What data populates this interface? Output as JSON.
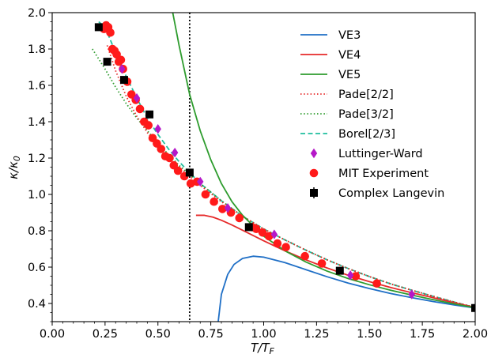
{
  "chart_data": {
    "type": "line",
    "xlabel": "T/T_F",
    "ylabel": "κ/κ_0",
    "xlim": [
      0.0,
      2.0
    ],
    "ylim": [
      0.3,
      2.0
    ],
    "xticks": [
      0.0,
      0.25,
      0.5,
      0.75,
      1.0,
      1.25,
      1.5,
      1.75,
      2.0
    ],
    "xtick_labels": [
      "0.00",
      "0.25",
      "0.50",
      "0.75",
      "1.00",
      "1.25",
      "1.50",
      "1.75",
      "2.00"
    ],
    "yticks": [
      0.4,
      0.6,
      0.8,
      1.0,
      1.2,
      1.4,
      1.6,
      1.8,
      2.0
    ],
    "ytick_labels": [
      "0.4",
      "0.6",
      "0.8",
      "1.0",
      "1.2",
      "1.4",
      "1.6",
      "1.8",
      "2.0"
    ],
    "grid": false,
    "legend_position": "top-right",
    "vline_x": 0.65,
    "series": [
      {
        "name": "VE3",
        "kind": "line",
        "color": "#1f6fc6",
        "dash": "solid",
        "x": [
          0.785,
          0.8,
          0.83,
          0.86,
          0.9,
          0.95,
          1.0,
          1.1,
          1.2,
          1.3,
          1.4,
          1.5,
          1.6,
          1.7,
          1.8,
          1.9,
          2.0
        ],
        "y": [
          0.3,
          0.45,
          0.56,
          0.615,
          0.648,
          0.66,
          0.655,
          0.625,
          0.586,
          0.547,
          0.512,
          0.482,
          0.455,
          0.432,
          0.411,
          0.392,
          0.375
        ]
      },
      {
        "name": "VE4",
        "kind": "line",
        "color": "#e62a2a",
        "dash": "solid",
        "x": [
          0.68,
          0.72,
          0.76,
          0.8,
          0.85,
          0.9,
          1.0,
          1.1,
          1.2,
          1.3,
          1.4,
          1.5,
          1.6,
          1.7,
          1.8,
          1.9,
          2.0
        ],
        "y": [
          0.885,
          0.885,
          0.875,
          0.858,
          0.832,
          0.803,
          0.745,
          0.69,
          0.64,
          0.595,
          0.555,
          0.52,
          0.488,
          0.459,
          0.432,
          0.404,
          0.378
        ]
      },
      {
        "name": "VE5",
        "kind": "line",
        "color": "#2e9c2e",
        "dash": "solid",
        "x": [
          0.57,
          0.6,
          0.65,
          0.7,
          0.75,
          0.8,
          0.85,
          0.9,
          1.0,
          1.1,
          1.2,
          1.3,
          1.4,
          1.5,
          1.6,
          1.7,
          1.8,
          1.9,
          2.0
        ],
        "y": [
          2.0,
          1.82,
          1.55,
          1.35,
          1.19,
          1.06,
          0.96,
          0.885,
          0.77,
          0.69,
          0.628,
          0.578,
          0.537,
          0.503,
          0.473,
          0.446,
          0.421,
          0.398,
          0.376
        ]
      },
      {
        "name": "Pade[2/2]",
        "kind": "line",
        "color": "#e62a2a",
        "dash": "dotted",
        "x": [
          0.26,
          0.3,
          0.35,
          0.4,
          0.45,
          0.5,
          0.55,
          0.6,
          0.65,
          0.7,
          0.8,
          0.9,
          1.0,
          1.1,
          1.2,
          1.3,
          1.4,
          1.5,
          1.6,
          1.7,
          1.8,
          1.9,
          2.0
        ],
        "y": [
          1.82,
          1.68,
          1.54,
          1.43,
          1.34,
          1.27,
          1.2,
          1.15,
          1.1,
          1.05,
          0.96,
          0.88,
          0.81,
          0.75,
          0.693,
          0.64,
          0.592,
          0.548,
          0.508,
          0.473,
          0.44,
          0.408,
          0.378
        ]
      },
      {
        "name": "Pade[3/2]",
        "kind": "line",
        "color": "#2e9c2e",
        "dash": "dotted",
        "x": [
          0.19,
          0.25,
          0.3,
          0.35,
          0.4,
          0.45,
          0.5,
          0.55,
          0.6,
          0.65,
          0.7,
          0.8,
          0.9,
          1.0,
          1.1,
          1.2,
          1.3,
          1.4,
          1.5,
          1.6,
          1.7,
          1.8,
          1.9,
          2.0
        ],
        "y": [
          1.8,
          1.69,
          1.59,
          1.5,
          1.42,
          1.35,
          1.28,
          1.22,
          1.16,
          1.11,
          1.06,
          0.965,
          0.88,
          0.81,
          0.75,
          0.693,
          0.64,
          0.592,
          0.548,
          0.508,
          0.473,
          0.44,
          0.408,
          0.378
        ]
      },
      {
        "name": "Borel[2/3]",
        "kind": "line",
        "color": "#1fbf9f",
        "dash": "dashed",
        "x": [
          0.22,
          0.25,
          0.3,
          0.35,
          0.4,
          0.45,
          0.5,
          0.55,
          0.6,
          0.65,
          0.7,
          0.8,
          0.9,
          1.0,
          1.1,
          1.2,
          1.3,
          1.4,
          1.5,
          1.6,
          1.7,
          1.8,
          1.9,
          2.0
        ],
        "y": [
          1.95,
          1.92,
          1.78,
          1.65,
          1.53,
          1.42,
          1.33,
          1.25,
          1.18,
          1.12,
          1.06,
          0.965,
          0.88,
          0.81,
          0.75,
          0.693,
          0.64,
          0.592,
          0.548,
          0.508,
          0.473,
          0.44,
          0.408,
          0.378
        ]
      },
      {
        "name": "Luttinger-Ward",
        "kind": "marker",
        "marker": "diamond",
        "color": "#b518c8",
        "x": [
          0.33,
          0.4,
          0.5,
          0.58,
          0.7,
          0.83,
          1.05,
          1.41,
          1.7
        ],
        "y": [
          1.69,
          1.53,
          1.36,
          1.23,
          1.07,
          0.925,
          0.78,
          0.555,
          0.45
        ]
      },
      {
        "name": "MIT Experiment",
        "kind": "marker",
        "marker": "circle",
        "color": "#ff1a1a",
        "x": [
          0.245,
          0.255,
          0.265,
          0.275,
          0.285,
          0.295,
          0.305,
          0.315,
          0.325,
          0.335,
          0.355,
          0.375,
          0.395,
          0.415,
          0.435,
          0.455,
          0.475,
          0.495,
          0.515,
          0.535,
          0.555,
          0.575,
          0.595,
          0.625,
          0.655,
          0.685,
          0.725,
          0.765,
          0.805,
          0.845,
          0.885,
          0.945,
          0.965,
          0.995,
          1.025,
          1.065,
          1.105,
          1.195,
          1.275,
          1.435,
          1.535
        ],
        "y": [
          1.91,
          1.93,
          1.92,
          1.89,
          1.8,
          1.79,
          1.77,
          1.73,
          1.74,
          1.69,
          1.62,
          1.55,
          1.52,
          1.47,
          1.4,
          1.38,
          1.31,
          1.28,
          1.25,
          1.21,
          1.2,
          1.16,
          1.13,
          1.1,
          1.06,
          1.07,
          1.0,
          0.96,
          0.92,
          0.9,
          0.87,
          0.82,
          0.81,
          0.79,
          0.77,
          0.73,
          0.71,
          0.66,
          0.62,
          0.55,
          0.51
        ]
      },
      {
        "name": "Complex Langevin",
        "kind": "marker",
        "marker": "square",
        "color": "#000000",
        "x": [
          0.22,
          0.26,
          0.34,
          0.46,
          0.65,
          0.93,
          1.36,
          2.0
        ],
        "y": [
          1.92,
          1.73,
          1.63,
          1.44,
          1.12,
          0.82,
          0.58,
          0.375
        ]
      }
    ]
  }
}
